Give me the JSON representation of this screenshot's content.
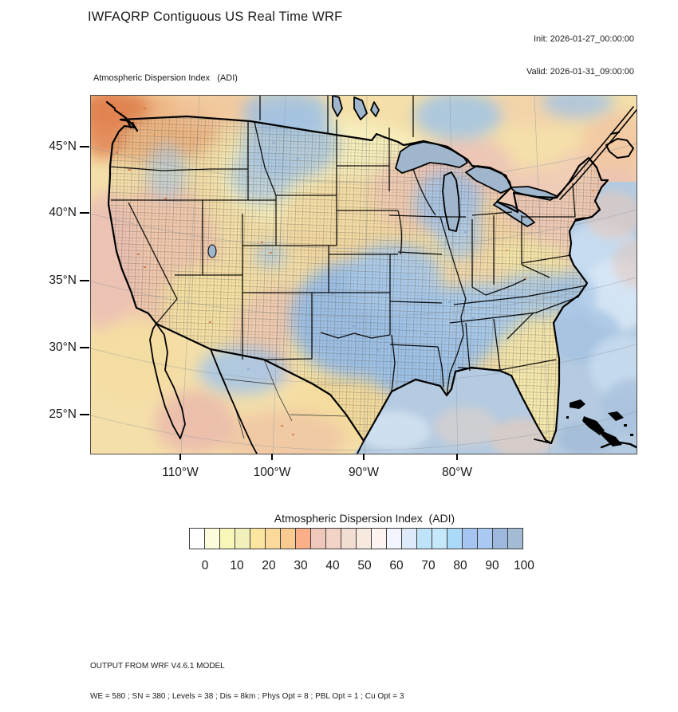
{
  "header": {
    "title": "IWFAQRP Contiguous US Real Time WRF",
    "init": "Init: 2026-01-27_00:00:00",
    "valid": "Valid: 2026-01-31_09:00:00"
  },
  "map": {
    "subtitle": "Atmospheric Dispersion Index   (ADI)",
    "lat_tick_labels": [
      "45°N",
      "40°N",
      "35°N",
      "30°N",
      "25°N"
    ],
    "lon_tick_labels": [
      "110°W",
      "100°W",
      "90°W",
      "80°W"
    ]
  },
  "legend": {
    "title": "Atmospheric Dispersion Index  (ADI)",
    "tick_labels": [
      "0",
      "10",
      "20",
      "30",
      "40",
      "50",
      "60",
      "70",
      "80",
      "90",
      "100"
    ],
    "box_colors": [
      "#FFFFFF",
      "#FCFBDB",
      "#F8F6B9",
      "#F2F0BA",
      "#FAE69E",
      "#FBD99A",
      "#F9CB90",
      "#FAAF89",
      "#EFC8BB",
      "#F3D3C6",
      "#F2DDD3",
      "#F8E9DF",
      "#FDF4F1",
      "#F2F5FD",
      "#DCEAF9",
      "#BEE4FA",
      "#C5E8FB",
      "#ABD9F8",
      "#A5C4F0",
      "#AAC9F2",
      "#9DB8DC",
      "#A4BCD3"
    ]
  },
  "footer": {
    "line1": "OUTPUT FROM WRF V4.6.1 MODEL",
    "line2": "WE = 580 ; SN = 380 ; Levels = 38 ; Dis = 8km ; Phys Opt = 8 ; PBL Opt = 1 ; Cu Opt = 3"
  },
  "chart_data": {
    "type": "heatmap",
    "title": "Atmospheric Dispersion Index (ADI)",
    "colorbar_tick_values": [
      0,
      10,
      20,
      30,
      40,
      50,
      60,
      70,
      80,
      90,
      100
    ],
    "colorbar_interval": 5,
    "x_tick_labels": [
      "110°W",
      "100°W",
      "90°W",
      "80°W"
    ],
    "y_tick_labels": [
      "45°N",
      "40°N",
      "35°N",
      "30°N",
      "25°N"
    ]
  }
}
